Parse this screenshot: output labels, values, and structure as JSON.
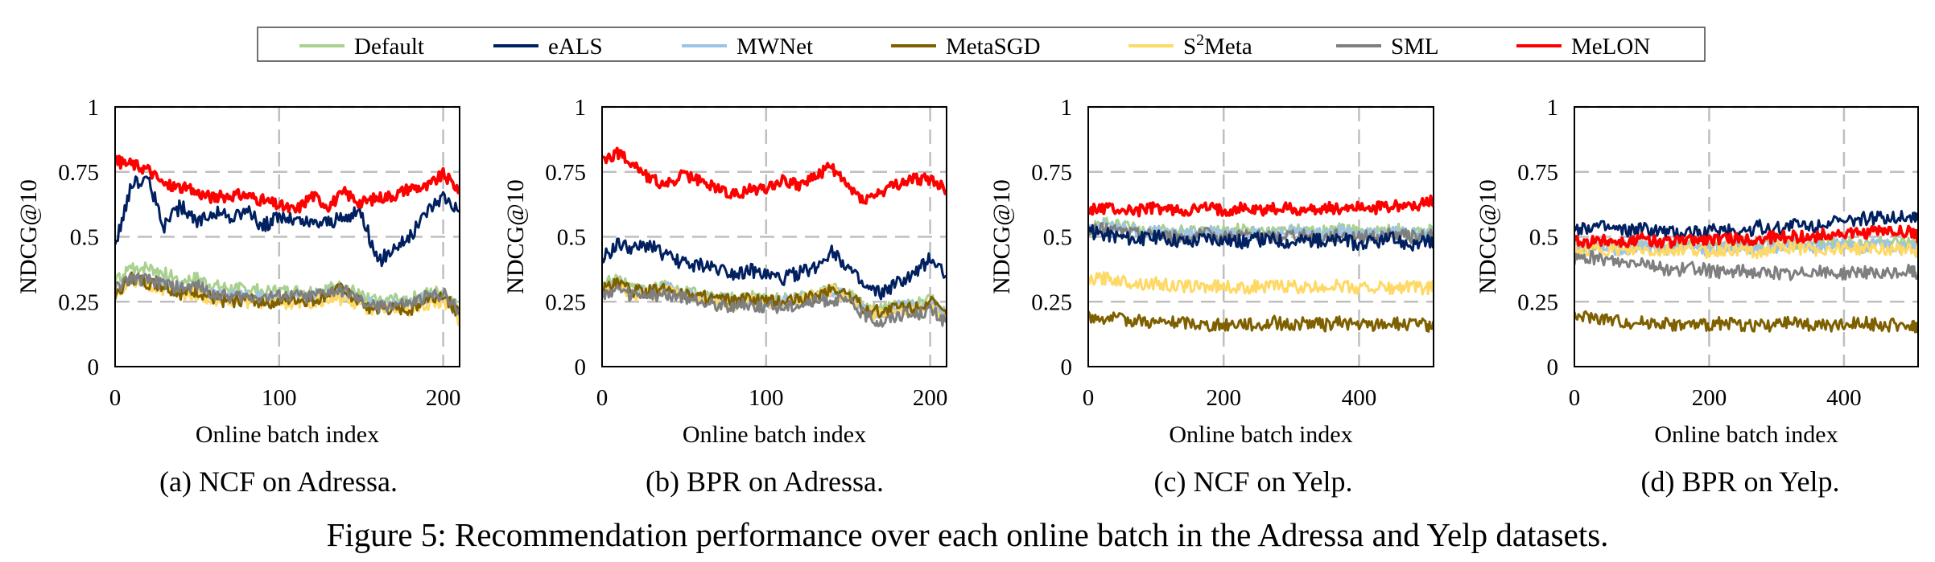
{
  "legend": {
    "items": [
      {
        "name": "Default",
        "color": "#a9d18e"
      },
      {
        "name": "eALS",
        "color": "#002060"
      },
      {
        "name": "MWNet",
        "color": "#9dc3e6"
      },
      {
        "name": "MetaSGD",
        "color": "#7f6000"
      },
      {
        "name": "S2Meta",
        "color": "#ffd966"
      },
      {
        "name": "SML",
        "color": "#7f7f7f"
      },
      {
        "name": "MeLON",
        "color": "#ff0000"
      }
    ]
  },
  "figure_caption": "Figure 5: Recommendation performance over each online batch in the Adressa and Yelp datasets.",
  "chart_data": [
    {
      "type": "line",
      "caption": "(a) NCF on Adressa.",
      "xlabel": "Online batch index",
      "ylabel": "NDCG@10",
      "xlim": [
        0,
        210
      ],
      "ylim": [
        0,
        1
      ],
      "xticks": [
        0,
        100,
        200
      ],
      "yticks": [
        0,
        0.25,
        0.5,
        0.75,
        1
      ],
      "ytick_labels": [
        "0",
        "0.25",
        "0.5",
        "0.75",
        "1"
      ],
      "grid": "dashed",
      "x": [
        0,
        10,
        20,
        30,
        40,
        50,
        60,
        70,
        80,
        90,
        100,
        110,
        120,
        130,
        140,
        150,
        160,
        170,
        180,
        190,
        200,
        210
      ],
      "series": [
        {
          "name": "Default",
          "values": [
            0.32,
            0.38,
            0.38,
            0.36,
            0.33,
            0.34,
            0.31,
            0.3,
            0.3,
            0.29,
            0.29,
            0.29,
            0.29,
            0.3,
            0.31,
            0.27,
            0.25,
            0.26,
            0.26,
            0.28,
            0.29,
            0.22
          ]
        },
        {
          "name": "MWNet",
          "values": [
            0.29,
            0.34,
            0.33,
            0.32,
            0.3,
            0.3,
            0.28,
            0.27,
            0.27,
            0.27,
            0.26,
            0.27,
            0.27,
            0.28,
            0.28,
            0.25,
            0.23,
            0.24,
            0.24,
            0.26,
            0.27,
            0.2
          ]
        },
        {
          "name": "S2Meta",
          "values": [
            0.28,
            0.32,
            0.31,
            0.3,
            0.28,
            0.28,
            0.26,
            0.25,
            0.25,
            0.25,
            0.24,
            0.25,
            0.25,
            0.26,
            0.26,
            0.23,
            0.21,
            0.22,
            0.22,
            0.24,
            0.25,
            0.18
          ]
        },
        {
          "name": "MetaSGD",
          "values": [
            0.28,
            0.34,
            0.32,
            0.31,
            0.28,
            0.29,
            0.26,
            0.25,
            0.26,
            0.25,
            0.25,
            0.26,
            0.25,
            0.28,
            0.3,
            0.24,
            0.22,
            0.22,
            0.22,
            0.26,
            0.28,
            0.2
          ]
        },
        {
          "name": "SML",
          "values": [
            0.3,
            0.34,
            0.33,
            0.32,
            0.3,
            0.31,
            0.28,
            0.27,
            0.27,
            0.27,
            0.27,
            0.27,
            0.27,
            0.29,
            0.29,
            0.25,
            0.23,
            0.24,
            0.24,
            0.27,
            0.28,
            0.21
          ]
        },
        {
          "name": "eALS",
          "values": [
            0.47,
            0.7,
            0.72,
            0.54,
            0.62,
            0.55,
            0.6,
            0.57,
            0.6,
            0.54,
            0.58,
            0.56,
            0.55,
            0.56,
            0.57,
            0.6,
            0.4,
            0.46,
            0.5,
            0.6,
            0.66,
            0.6
          ]
        },
        {
          "name": "MeLON",
          "values": [
            0.79,
            0.78,
            0.76,
            0.7,
            0.69,
            0.67,
            0.65,
            0.66,
            0.66,
            0.64,
            0.62,
            0.6,
            0.66,
            0.62,
            0.67,
            0.63,
            0.65,
            0.66,
            0.69,
            0.69,
            0.74,
            0.68
          ]
        }
      ]
    },
    {
      "type": "line",
      "caption": "(b) BPR on Adressa.",
      "xlabel": "Online batch index",
      "ylabel": "NDCG@10",
      "xlim": [
        0,
        210
      ],
      "ylim": [
        0,
        1
      ],
      "xticks": [
        0,
        100,
        200
      ],
      "yticks": [
        0,
        0.25,
        0.5,
        0.75,
        1
      ],
      "ytick_labels": [
        "0",
        "0.25",
        "0.5",
        "0.75",
        "1"
      ],
      "grid": "dashed",
      "x": [
        0,
        10,
        20,
        30,
        40,
        50,
        60,
        70,
        80,
        90,
        100,
        110,
        120,
        130,
        140,
        150,
        160,
        170,
        180,
        190,
        200,
        210
      ],
      "series": [
        {
          "name": "Default",
          "values": [
            0.32,
            0.33,
            0.3,
            0.3,
            0.31,
            0.29,
            0.28,
            0.27,
            0.26,
            0.27,
            0.26,
            0.26,
            0.27,
            0.28,
            0.3,
            0.28,
            0.23,
            0.22,
            0.24,
            0.24,
            0.26,
            0.2
          ]
        },
        {
          "name": "MWNet",
          "values": [
            0.3,
            0.31,
            0.29,
            0.29,
            0.3,
            0.28,
            0.27,
            0.26,
            0.25,
            0.26,
            0.25,
            0.25,
            0.26,
            0.27,
            0.29,
            0.27,
            0.22,
            0.21,
            0.23,
            0.23,
            0.25,
            0.19
          ]
        },
        {
          "name": "S2Meta",
          "values": [
            0.3,
            0.31,
            0.28,
            0.28,
            0.3,
            0.28,
            0.26,
            0.25,
            0.24,
            0.25,
            0.25,
            0.24,
            0.26,
            0.27,
            0.29,
            0.27,
            0.21,
            0.2,
            0.22,
            0.22,
            0.24,
            0.18
          ]
        },
        {
          "name": "MetaSGD",
          "values": [
            0.3,
            0.32,
            0.29,
            0.29,
            0.3,
            0.28,
            0.27,
            0.26,
            0.25,
            0.26,
            0.25,
            0.25,
            0.26,
            0.27,
            0.3,
            0.28,
            0.22,
            0.21,
            0.23,
            0.23,
            0.25,
            0.2
          ]
        },
        {
          "name": "SML",
          "values": [
            0.28,
            0.29,
            0.27,
            0.27,
            0.28,
            0.26,
            0.25,
            0.24,
            0.23,
            0.24,
            0.23,
            0.23,
            0.24,
            0.25,
            0.26,
            0.25,
            0.2,
            0.17,
            0.2,
            0.2,
            0.22,
            0.17
          ]
        },
        {
          "name": "eALS",
          "values": [
            0.42,
            0.47,
            0.45,
            0.47,
            0.42,
            0.4,
            0.39,
            0.38,
            0.36,
            0.37,
            0.35,
            0.34,
            0.36,
            0.38,
            0.45,
            0.38,
            0.3,
            0.28,
            0.32,
            0.35,
            0.42,
            0.35
          ]
        },
        {
          "name": "MeLON",
          "values": [
            0.8,
            0.82,
            0.78,
            0.72,
            0.7,
            0.74,
            0.71,
            0.69,
            0.66,
            0.68,
            0.69,
            0.72,
            0.7,
            0.73,
            0.77,
            0.69,
            0.64,
            0.67,
            0.7,
            0.72,
            0.72,
            0.68
          ]
        }
      ]
    },
    {
      "type": "line",
      "caption": "(c) NCF on Yelp.",
      "xlabel": "Online batch index",
      "ylabel": "NDCG@10",
      "xlim": [
        0,
        510
      ],
      "ylim": [
        0,
        1
      ],
      "xticks": [
        0,
        200,
        400
      ],
      "yticks": [
        0,
        0.25,
        0.5,
        0.75,
        1
      ],
      "ytick_labels": [
        "0",
        "0.25",
        "0.5",
        "0.75",
        "1"
      ],
      "grid": "dashed",
      "x": [
        0,
        25,
        50,
        75,
        100,
        125,
        150,
        175,
        200,
        225,
        250,
        275,
        300,
        325,
        350,
        375,
        400,
        425,
        450,
        475,
        500,
        510
      ],
      "series": [
        {
          "name": "Default",
          "values": [
            0.54,
            0.55,
            0.54,
            0.53,
            0.53,
            0.52,
            0.52,
            0.53,
            0.52,
            0.53,
            0.52,
            0.52,
            0.53,
            0.52,
            0.52,
            0.53,
            0.52,
            0.52,
            0.53,
            0.52,
            0.52,
            0.53
          ]
        },
        {
          "name": "MWNet",
          "values": [
            0.53,
            0.54,
            0.53,
            0.52,
            0.52,
            0.51,
            0.51,
            0.52,
            0.51,
            0.52,
            0.51,
            0.51,
            0.52,
            0.51,
            0.51,
            0.52,
            0.51,
            0.51,
            0.52,
            0.51,
            0.51,
            0.52
          ]
        },
        {
          "name": "S2Meta",
          "values": [
            0.33,
            0.34,
            0.33,
            0.32,
            0.32,
            0.31,
            0.31,
            0.31,
            0.31,
            0.3,
            0.31,
            0.31,
            0.31,
            0.3,
            0.31,
            0.31,
            0.3,
            0.31,
            0.3,
            0.31,
            0.3,
            0.31
          ]
        },
        {
          "name": "MetaSGD",
          "values": [
            0.19,
            0.19,
            0.18,
            0.18,
            0.17,
            0.17,
            0.17,
            0.16,
            0.16,
            0.17,
            0.16,
            0.17,
            0.16,
            0.17,
            0.16,
            0.17,
            0.16,
            0.16,
            0.17,
            0.16,
            0.16,
            0.16
          ]
        },
        {
          "name": "SML",
          "values": [
            0.52,
            0.53,
            0.52,
            0.51,
            0.51,
            0.5,
            0.5,
            0.51,
            0.5,
            0.51,
            0.5,
            0.5,
            0.51,
            0.5,
            0.5,
            0.51,
            0.5,
            0.5,
            0.51,
            0.5,
            0.5,
            0.51
          ]
        },
        {
          "name": "eALS",
          "values": [
            0.52,
            0.51,
            0.5,
            0.49,
            0.5,
            0.49,
            0.48,
            0.5,
            0.49,
            0.48,
            0.49,
            0.49,
            0.48,
            0.49,
            0.48,
            0.49,
            0.47,
            0.48,
            0.49,
            0.47,
            0.48,
            0.47
          ]
        },
        {
          "name": "MeLON",
          "values": [
            0.6,
            0.61,
            0.6,
            0.6,
            0.61,
            0.6,
            0.6,
            0.61,
            0.6,
            0.61,
            0.6,
            0.61,
            0.61,
            0.6,
            0.61,
            0.61,
            0.62,
            0.61,
            0.62,
            0.62,
            0.63,
            0.64
          ]
        }
      ]
    },
    {
      "type": "line",
      "caption": "(d) BPR on Yelp.",
      "xlabel": "Online batch index",
      "ylabel": "NDCG@10",
      "xlim": [
        0,
        510
      ],
      "ylim": [
        0,
        1
      ],
      "xticks": [
        0,
        200,
        400
      ],
      "yticks": [
        0,
        0.25,
        0.5,
        0.75,
        1
      ],
      "ytick_labels": [
        "0",
        "0.25",
        "0.5",
        "0.75",
        "1"
      ],
      "grid": "dashed",
      "x": [
        0,
        25,
        50,
        75,
        100,
        125,
        150,
        175,
        200,
        225,
        250,
        275,
        300,
        325,
        350,
        375,
        400,
        425,
        450,
        475,
        500,
        510
      ],
      "series": [
        {
          "name": "Default",
          "values": [
            0.46,
            0.47,
            0.47,
            0.46,
            0.47,
            0.46,
            0.47,
            0.47,
            0.46,
            0.47,
            0.47,
            0.46,
            0.47,
            0.48,
            0.47,
            0.47,
            0.48,
            0.47,
            0.48,
            0.47,
            0.47,
            0.46
          ]
        },
        {
          "name": "MWNet",
          "values": [
            0.45,
            0.46,
            0.46,
            0.45,
            0.46,
            0.45,
            0.46,
            0.46,
            0.45,
            0.46,
            0.46,
            0.45,
            0.46,
            0.47,
            0.46,
            0.46,
            0.47,
            0.46,
            0.47,
            0.46,
            0.46,
            0.45
          ]
        },
        {
          "name": "S2Meta",
          "values": [
            0.44,
            0.45,
            0.45,
            0.44,
            0.45,
            0.44,
            0.45,
            0.45,
            0.44,
            0.45,
            0.45,
            0.44,
            0.45,
            0.46,
            0.45,
            0.45,
            0.46,
            0.45,
            0.46,
            0.45,
            0.45,
            0.44
          ]
        },
        {
          "name": "MetaSGD",
          "values": [
            0.19,
            0.19,
            0.18,
            0.17,
            0.17,
            0.17,
            0.16,
            0.16,
            0.16,
            0.17,
            0.16,
            0.16,
            0.16,
            0.17,
            0.16,
            0.16,
            0.16,
            0.17,
            0.16,
            0.16,
            0.16,
            0.15
          ]
        },
        {
          "name": "SML",
          "values": [
            0.41,
            0.42,
            0.41,
            0.4,
            0.41,
            0.38,
            0.37,
            0.38,
            0.37,
            0.36,
            0.37,
            0.36,
            0.36,
            0.35,
            0.37,
            0.36,
            0.36,
            0.37,
            0.35,
            0.36,
            0.37,
            0.35
          ]
        },
        {
          "name": "eALS",
          "values": [
            0.53,
            0.54,
            0.53,
            0.52,
            0.53,
            0.52,
            0.51,
            0.52,
            0.52,
            0.53,
            0.52,
            0.54,
            0.53,
            0.55,
            0.54,
            0.56,
            0.55,
            0.57,
            0.57,
            0.58,
            0.58,
            0.58
          ]
        },
        {
          "name": "MeLON",
          "values": [
            0.48,
            0.48,
            0.49,
            0.48,
            0.49,
            0.48,
            0.48,
            0.49,
            0.49,
            0.49,
            0.49,
            0.49,
            0.5,
            0.5,
            0.5,
            0.51,
            0.51,
            0.51,
            0.52,
            0.52,
            0.52,
            0.5
          ]
        }
      ]
    }
  ]
}
